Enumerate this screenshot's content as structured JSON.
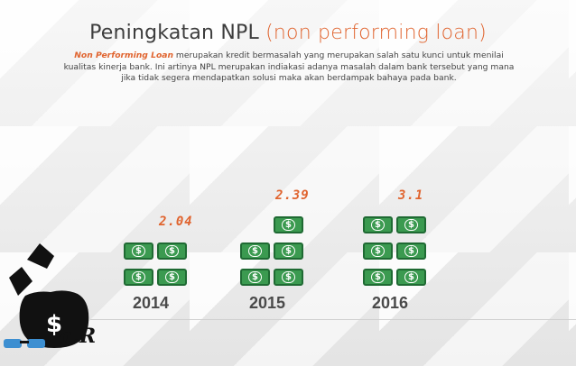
{
  "title": {
    "main": "Peningkatan NPL",
    "paren": "(non performing loan)"
  },
  "description": {
    "term": "Non Performing Loan",
    "text": " merupakan kredit bermasalah yang merupakan salah satu kunci untuk menilai kualitas kinerja bank. Ini artinya NPL merupakan indiakasi adanya masalah dalam bank tersebut yang mana jika tidak segera mendapatkan solusi maka akan berdampak bahaya pada bank."
  },
  "chart_data": {
    "type": "bar",
    "categories": [
      "2014",
      "2015",
      "2016"
    ],
    "values": [
      2.04,
      2.39,
      3.1
    ],
    "value_labels": [
      "2.04",
      "2.39",
      "3.1"
    ],
    "title": "Peningkatan NPL (non performing loan)",
    "unit_icon": "dollar-bill-icon"
  },
  "bill_symbol": "($)",
  "signature": "a.R",
  "colors": {
    "accent": "#e0642f",
    "bill": "#3b9a50",
    "text": "#444444"
  }
}
